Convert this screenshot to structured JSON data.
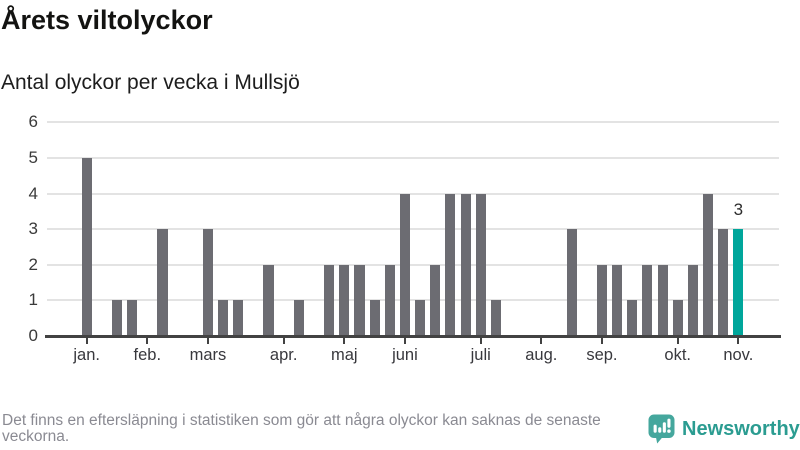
{
  "chart_data": {
    "type": "bar",
    "title": "Årets viltolyckor",
    "subtitle": "Antal olyckor per vecka i Mullsjö",
    "categories": [
      1,
      2,
      3,
      4,
      5,
      6,
      7,
      8,
      9,
      10,
      11,
      12,
      13,
      14,
      15,
      16,
      17,
      18,
      19,
      20,
      21,
      22,
      23,
      24,
      25,
      26,
      27,
      28,
      29,
      30,
      31,
      32,
      33,
      34,
      35,
      36,
      37,
      38,
      39,
      40,
      41,
      42,
      43,
      44
    ],
    "values": [
      5,
      0,
      1,
      1,
      0,
      3,
      0,
      0,
      3,
      1,
      1,
      0,
      2,
      0,
      1,
      0,
      2,
      2,
      2,
      1,
      2,
      4,
      1,
      2,
      4,
      4,
      4,
      1,
      0,
      0,
      0,
      0,
      3,
      0,
      2,
      2,
      1,
      2,
      2,
      1,
      2,
      4,
      3,
      3
    ],
    "ylim": [
      0,
      6
    ],
    "yticks": [
      0,
      1,
      2,
      3,
      4,
      5,
      6
    ],
    "grid": "horizontal",
    "legend": "none",
    "month_ticks": [
      {
        "week": 1,
        "label": "jan."
      },
      {
        "week": 5,
        "label": "feb."
      },
      {
        "week": 9,
        "label": "mars"
      },
      {
        "week": 14,
        "label": "apr."
      },
      {
        "week": 18,
        "label": "maj"
      },
      {
        "week": 22,
        "label": "juni"
      },
      {
        "week": 27,
        "label": "juli"
      },
      {
        "week": 31,
        "label": "aug."
      },
      {
        "week": 35,
        "label": "sep."
      },
      {
        "week": 40,
        "label": "okt."
      },
      {
        "week": 44,
        "label": "nov."
      }
    ],
    "highlight": {
      "week": 44,
      "value": 3,
      "label": "3"
    },
    "colors": {
      "bar": "#6c6c72",
      "highlight": "#00a69b",
      "grid": "#e3e3e3",
      "axis": "#424242"
    }
  },
  "footer": {
    "note": "Det finns en eftersläpning i statistiken som gör att några olyckor kan saknas de senaste veckorna.",
    "brand": "Newsworthy",
    "brand_color": "#2b9c91",
    "brand_icon": "newsworthy-speech-bubble-barchart-icon"
  }
}
